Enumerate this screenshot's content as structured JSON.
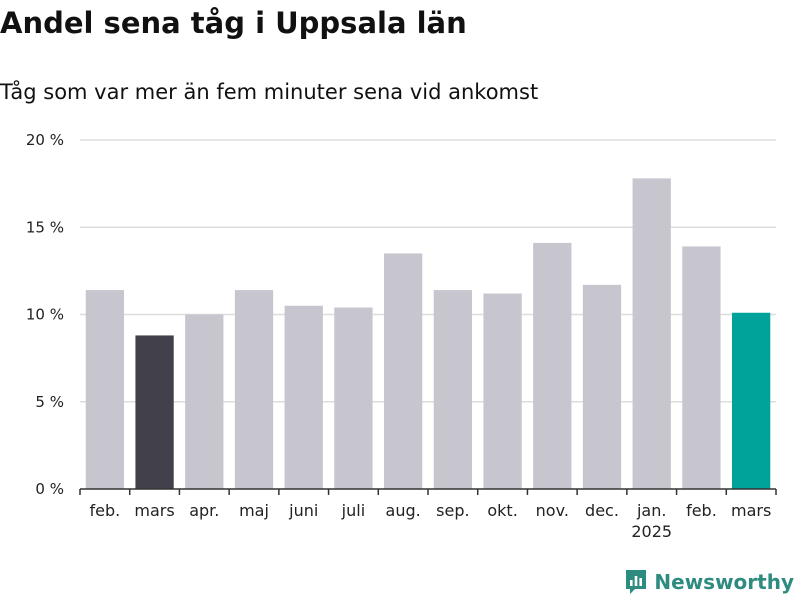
{
  "title": "Andel sena tåg i Uppsala län",
  "subtitle": "Tåg som var mer än fem minuter sena vid ankomst",
  "brand": {
    "name": "Newsworthy",
    "icon": "newsworthy-logo-icon"
  },
  "colors": {
    "default_bar": "#c7c6cf",
    "previous_year_bar": "#41404b",
    "current_bar": "#00a39a",
    "grid": "#dddddd",
    "axis": "#333333"
  },
  "chart_data": {
    "type": "bar",
    "title": "Andel sena tåg i Uppsala län",
    "subtitle": "Tåg som var mer än fem minuter sena vid ankomst",
    "xlabel": "",
    "ylabel": "",
    "ylim": [
      0,
      20
    ],
    "yticks": [
      0,
      5,
      10,
      15,
      20
    ],
    "ytick_labels": [
      "0 %",
      "5 %",
      "10 %",
      "15 %",
      "20 %"
    ],
    "categories": [
      "feb.",
      "mars",
      "apr.",
      "maj",
      "juni",
      "juli",
      "aug.",
      "sep.",
      "okt.",
      "nov.",
      "dec.",
      "jan.",
      "feb.",
      "mars"
    ],
    "year_labels": [
      "",
      "",
      "",
      "",
      "",
      "",
      "",
      "",
      "",
      "",
      "",
      "2025",
      "",
      ""
    ],
    "values": [
      11.4,
      8.8,
      10.0,
      11.4,
      10.5,
      10.4,
      13.5,
      11.4,
      11.2,
      14.1,
      11.7,
      17.8,
      13.9,
      10.1
    ],
    "highlight": [
      "default",
      "previous_year",
      "default",
      "default",
      "default",
      "default",
      "default",
      "default",
      "default",
      "default",
      "default",
      "default",
      "default",
      "current"
    ],
    "grid": true,
    "legend": "none"
  }
}
